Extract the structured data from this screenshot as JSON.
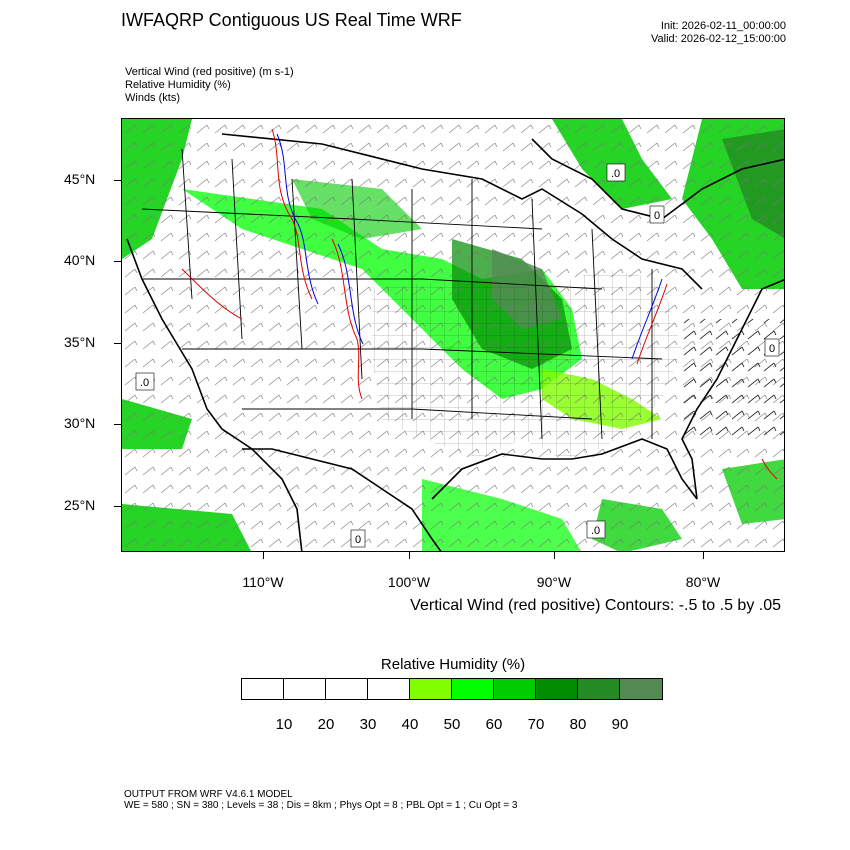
{
  "header": {
    "title": "IWFAQRP Contiguous US Real Time WRF",
    "init": "Init: 2026-02-11_00:00:00",
    "valid": "Valid: 2026-02-12_15:00:00"
  },
  "fields": {
    "vertical_wind": "Vertical Wind (red positive)   (m s-1)",
    "relative_humidity": "Relative Humidity   (%)",
    "winds": "Winds   (kts)"
  },
  "map": {
    "lat_labels": [
      "45°N",
      "40°N",
      "35°N",
      "30°N",
      "25°N"
    ],
    "lon_labels": [
      "110°W",
      "100°W",
      "90°W",
      "80°W"
    ],
    "contour_note": "Vertical Wind (red positive) Contours: -.5 to .5 by .05",
    "contour_marker_labels": [
      ".0",
      "0",
      ".0",
      "0",
      "0",
      ".0"
    ]
  },
  "colorbar": {
    "title": "Relative Humidity  (%)",
    "labels": [
      "10",
      "20",
      "30",
      "40",
      "50",
      "60",
      "70",
      "80",
      "90"
    ],
    "colors": [
      "#ffffff",
      "#ffffff",
      "#ffffff",
      "#ffffff",
      "#80ff00",
      "#00ff00",
      "#00cd00",
      "#008b00",
      "#228b22",
      "#548b54"
    ]
  },
  "footer": {
    "line1": "OUTPUT FROM WRF V4.6.1 MODEL",
    "line2": "WE = 580 ; SN = 380 ; Levels = 38 ; Dis = 8km ; Phys Opt = 8 ; PBL Opt = 1 ; Cu Opt = 3"
  }
}
